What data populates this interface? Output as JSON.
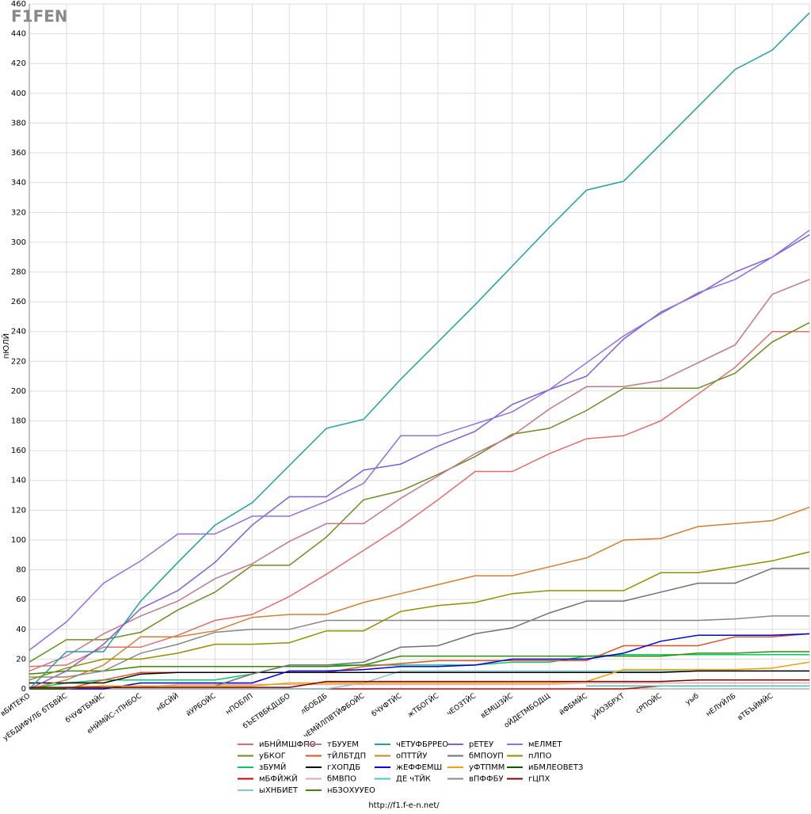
{
  "logo": "F1FEN",
  "footer": "http://f1.f-e-n.net/",
  "chart_data": {
    "type": "line",
    "y_label": "пЮЛЙ",
    "categories": [
      "вБИТЕКО",
      "уЕБДИФУЛБ бТБВЙС",
      "бЧУФТБМЙС",
      "еНЙМЙС-тПНБОС",
      "нБСЙЙ",
      "йУРБОЙС",
      "нПОБЛП",
      "бЪЕТВБКДЦБО",
      "лБОБДБ",
      "чЕМЙЛПВТЙФБОЙС",
      "бЧУФТЙС",
      "жТБОГЙС",
      "чЕОЗТЙС",
      "вЕМШЗЙС",
      "оЙДЕТМБОДЩ",
      "йФБМЙС",
      "уЙОЗБРХТ",
      "сРПОЙС",
      "уыб",
      "нЕЛУЙЛБ",
      "вТБЪЙМЙС",
      null
    ],
    "ylim": [
      0,
      460
    ],
    "yticks": [
      0,
      20,
      40,
      60,
      80,
      100,
      120,
      140,
      160,
      180,
      200,
      220,
      240,
      260,
      280,
      300,
      320,
      340,
      360,
      380,
      400,
      420,
      440,
      460
    ],
    "grid": true,
    "series": [
      {
        "name": "иБНЙМШФПО",
        "color": "#e06c6c",
        "values": [
          15,
          16,
          28,
          28,
          36,
          46,
          50,
          62,
          77,
          93,
          109,
          127,
          146,
          146,
          158,
          168,
          170,
          180,
          198,
          216,
          240,
          240
        ]
      },
      {
        "name": "уБКОГ",
        "color": "#6b8e23",
        "values": [
          18,
          33,
          33,
          38,
          53,
          65,
          83,
          83,
          102,
          127,
          133,
          144,
          156,
          171,
          175,
          187,
          202,
          202,
          202,
          212,
          233,
          246
        ]
      },
      {
        "name": "зБУМЙ",
        "color": "#00cc66",
        "values": [
          0,
          4,
          6,
          6,
          6,
          6,
          10,
          16,
          16,
          16,
          16,
          16,
          16,
          18,
          18,
          22,
          23,
          23,
          23,
          23,
          23,
          23
        ]
      },
      {
        "name": "мБФЙЖЙ",
        "color": "#cc0000",
        "values": [
          0,
          0,
          0,
          0,
          0,
          0,
          0,
          0,
          0,
          0,
          0,
          0,
          0,
          0,
          0,
          0,
          0,
          2,
          2,
          2,
          2,
          2
        ]
      },
      {
        "name": "ыХНБИЕТ",
        "color": "#80c8d8",
        "values": [
          0,
          0,
          0,
          0,
          0,
          0,
          0,
          0,
          0,
          4,
          12,
          12,
          12,
          12,
          12,
          12,
          12,
          12,
          12,
          12,
          12,
          12
        ]
      },
      {
        "name": "тБУУЕМ",
        "color": "#c07888",
        "values": [
          12,
          22,
          37,
          49,
          59,
          74,
          84,
          99,
          111,
          111,
          128,
          143,
          158,
          170,
          188,
          203,
          203,
          207,
          219,
          231,
          265,
          275
        ]
      },
      {
        "name": "тЙЛБТДП",
        "color": "#e05020",
        "values": [
          0,
          0,
          6,
          11,
          11,
          11,
          11,
          11,
          11,
          15,
          17,
          19,
          19,
          19,
          19,
          19,
          29,
          29,
          29,
          35,
          35,
          37
        ]
      },
      {
        "name": "гХОПДБ",
        "color": "#000000",
        "values": [
          4,
          4,
          4,
          10,
          11,
          11,
          11,
          11,
          11,
          11,
          11,
          11,
          11,
          11,
          11,
          11,
          11,
          11,
          12,
          12,
          12,
          12
        ]
      },
      {
        "name": "бМВПО",
        "color": "#e0a8a8",
        "values": [
          0,
          0,
          1,
          1,
          3,
          3,
          3,
          3,
          3,
          3,
          3,
          3,
          3,
          3,
          3,
          4,
          4,
          4,
          4,
          4,
          4,
          4
        ]
      },
      {
        "name": "нБЗОХУУЕО",
        "color": "#3a8a00",
        "values": [
          10,
          12,
          12,
          15,
          15,
          15,
          15,
          15,
          15,
          16,
          22,
          22,
          22,
          22,
          22,
          22,
          22,
          22,
          24,
          24,
          25,
          25
        ]
      },
      {
        "name": "чЕТУФБРРЕО",
        "color": "#20a0a0",
        "values": [
          0,
          25,
          25,
          59,
          85,
          110,
          125,
          150,
          175,
          181,
          208,
          233,
          258,
          284,
          310,
          335,
          341,
          366,
          391,
          416,
          429,
          454
        ]
      },
      {
        "name": "оПТТЙУ",
        "color": "#d08030",
        "values": [
          0,
          6,
          16,
          35,
          35,
          39,
          48,
          50,
          50,
          58,
          64,
          70,
          76,
          76,
          82,
          88,
          100,
          101,
          109,
          111,
          113,
          122
        ]
      },
      {
        "name": "жЕФФЕМШ",
        "color": "#0000e0",
        "values": [
          0,
          0,
          0,
          4,
          4,
          4,
          4,
          12,
          12,
          13,
          15,
          15,
          16,
          20,
          20,
          20,
          24,
          32,
          36,
          36,
          36,
          37
        ]
      },
      {
        "name": "ДЕ чТЙК",
        "color": "#40c8b8",
        "values": [
          null,
          null,
          null,
          null,
          null,
          null,
          null,
          null,
          null,
          null,
          null,
          null,
          null,
          null,
          null,
          2,
          2,
          2,
          2,
          2,
          2,
          2
        ]
      },
      {
        "name": "рЕТЕУ",
        "color": "#8060d0",
        "values": [
          0,
          12,
          30,
          54,
          66,
          85,
          110,
          129,
          129,
          147,
          151,
          163,
          173,
          191,
          201,
          210,
          235,
          253,
          265,
          280,
          290,
          305
        ]
      },
      {
        "name": "бМПОУП",
        "color": "#707070",
        "values": [
          0,
          0,
          2,
          2,
          2,
          2,
          10,
          16,
          16,
          18,
          28,
          29,
          37,
          41,
          51,
          59,
          59,
          65,
          71,
          71,
          81,
          81
        ]
      },
      {
        "name": "уФТПММ",
        "color": "#f0a000",
        "values": [
          0,
          1,
          2,
          2,
          2,
          2,
          2,
          4,
          4,
          4,
          4,
          4,
          4,
          4,
          4,
          5,
          13,
          13,
          13,
          13,
          14,
          18
        ]
      },
      {
        "name": "вПФФБУ",
        "color": "#888888",
        "values": [
          8,
          8,
          12,
          24,
          30,
          38,
          40,
          40,
          46,
          46,
          46,
          46,
          46,
          46,
          46,
          46,
          46,
          46,
          46,
          47,
          49,
          49
        ]
      },
      {
        "name": "мЕЛМЕТ",
        "color": "#9070e0",
        "values": [
          26,
          45,
          71,
          86,
          104,
          104,
          116,
          116,
          126,
          138,
          170,
          170,
          178,
          186,
          201,
          219,
          237,
          252,
          266,
          275,
          290,
          308
        ]
      },
      {
        "name": "пЛПО",
        "color": "#909000",
        "values": [
          6,
          14,
          20,
          20,
          24,
          30,
          30,
          31,
          39,
          39,
          52,
          56,
          58,
          64,
          66,
          66,
          66,
          78,
          78,
          82,
          86,
          92
        ]
      },
      {
        "name": "иБМЛЕОВЕТЗ",
        "color": "#006000",
        "values": [
          0,
          0,
          null,
          null,
          null,
          null,
          null,
          null,
          null,
          null,
          null,
          null,
          null,
          null,
          null,
          null,
          null,
          null,
          null,
          null,
          null,
          null
        ]
      },
      {
        "name": "гЦПХ",
        "color": "#800000",
        "values": [
          1,
          1,
          1,
          1,
          1,
          1,
          1,
          1,
          5,
          5,
          5,
          5,
          5,
          5,
          5,
          5,
          5,
          5,
          6,
          6,
          6,
          6
        ]
      }
    ]
  }
}
